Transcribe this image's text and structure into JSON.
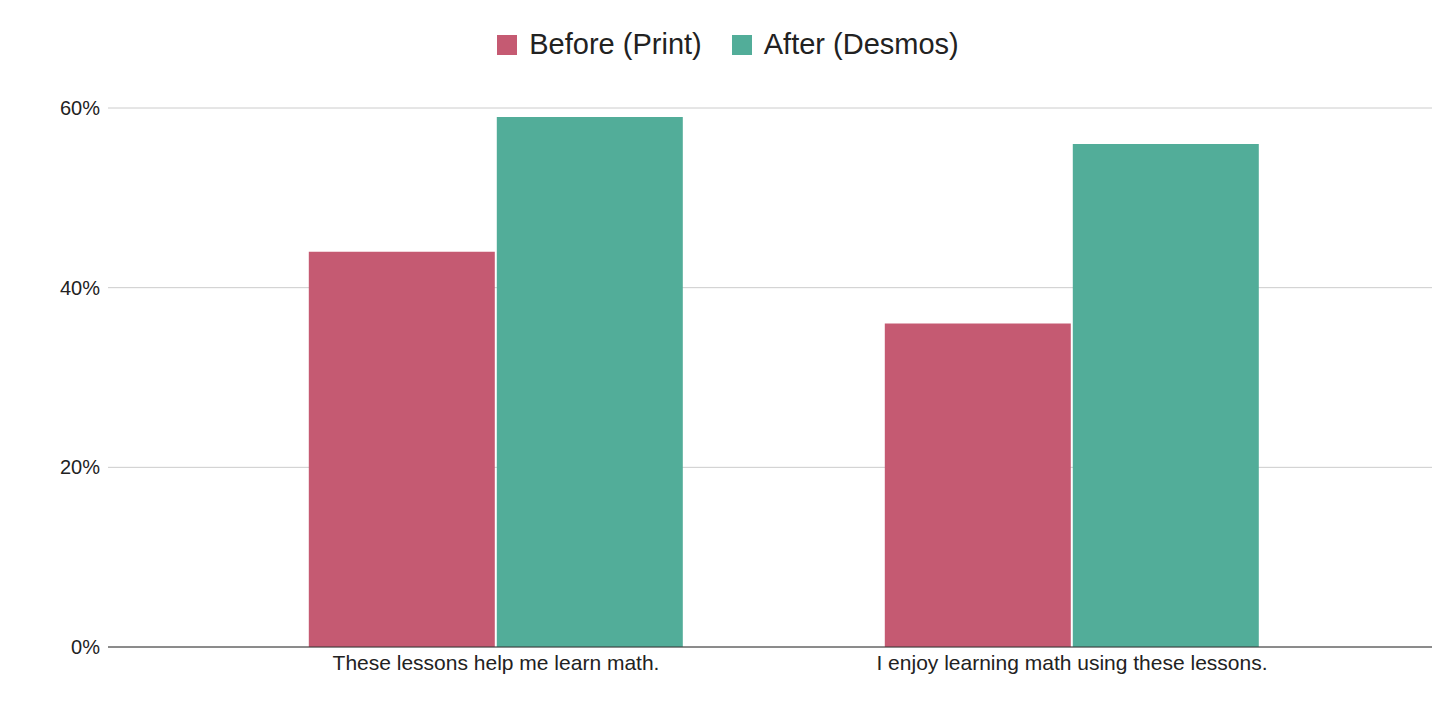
{
  "chart_data": {
    "type": "bar",
    "categories": [
      "These lessons help me learn math.",
      "I enjoy learning math using these lessons."
    ],
    "series": [
      {
        "name": "Before (Print)",
        "color": "#c55a72",
        "values": [
          44,
          36
        ]
      },
      {
        "name": "After (Desmos)",
        "color": "#52ad99",
        "values": [
          59,
          56
        ]
      }
    ],
    "ylim": [
      0,
      60
    ],
    "yticks": [
      {
        "value": 0,
        "label": "0%"
      },
      {
        "value": 20,
        "label": "20%"
      },
      {
        "value": 40,
        "label": "40%"
      },
      {
        "value": 60,
        "label": "60%"
      }
    ],
    "grid": true,
    "legend": "top"
  }
}
